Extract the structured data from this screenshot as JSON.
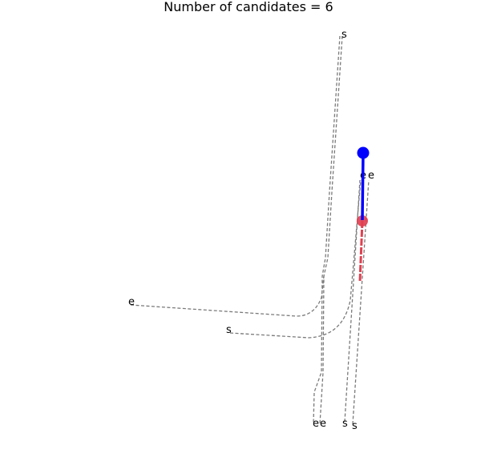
{
  "title": "Number of candidates = 6",
  "colors": {
    "lane": "#7a7a7a",
    "history": "#0000ff",
    "prediction": "#e04050",
    "label": "#000000"
  },
  "labels": {
    "start": "s",
    "end": "e"
  }
}
